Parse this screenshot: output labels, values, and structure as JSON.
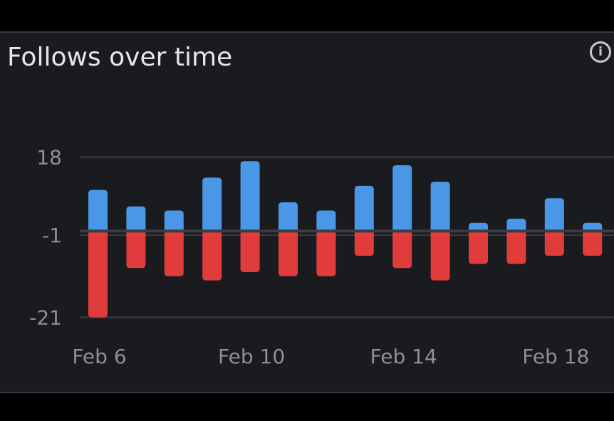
{
  "card": {
    "title": "Follows over time",
    "info_icon": "info-icon"
  },
  "chart_data": {
    "type": "bar",
    "title": "Follows over time",
    "categories": [
      "Feb 6",
      "Feb 7",
      "Feb 8",
      "Feb 9",
      "Feb 10",
      "Feb 11",
      "Feb 12",
      "Feb 13",
      "Feb 14",
      "Feb 15",
      "Feb 16",
      "Feb 17",
      "Feb 18",
      "Feb 19"
    ],
    "x_tick_labels": [
      "Feb 6",
      "Feb 10",
      "Feb 14",
      "Feb 18"
    ],
    "y_tick_labels": [
      "18",
      "-1",
      "-21"
    ],
    "y_ticks": [
      18,
      -1,
      -21
    ],
    "ylim": [
      -21,
      18
    ],
    "grid": true,
    "series": [
      {
        "values": [
          10,
          6,
          5,
          13,
          17,
          7,
          5,
          11,
          16,
          12,
          2,
          3,
          8,
          2
        ],
        "color": "#4a97e8"
      },
      {
        "values": [
          -21,
          -9,
          -11,
          -12,
          -10,
          -11,
          -11,
          -6,
          -9,
          -12,
          -8,
          -8,
          -6,
          -6
        ],
        "color": "#e03c3c"
      }
    ]
  }
}
